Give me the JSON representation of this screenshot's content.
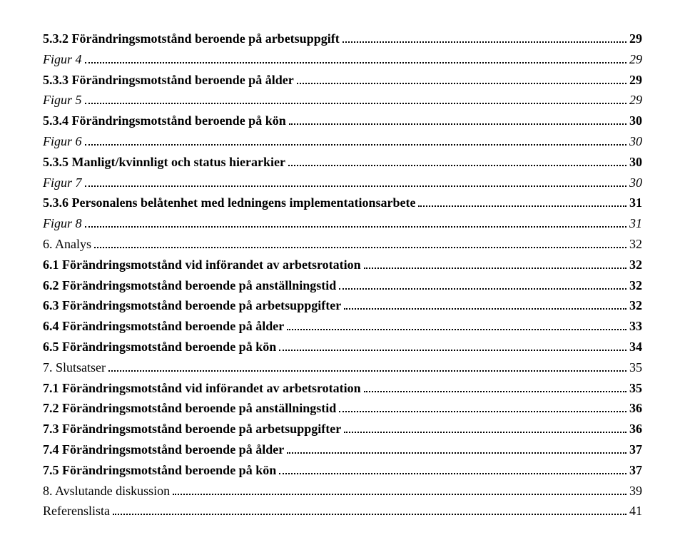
{
  "entries": [
    {
      "label": "5.3.2 Förändringsmotstånd beroende på arbetsuppgift",
      "page": "29",
      "bold": true,
      "italic": false
    },
    {
      "label": "Figur 4",
      "page": "29",
      "bold": false,
      "italic": true
    },
    {
      "label": "5.3.3 Förändringsmotstånd beroende på ålder",
      "page": "29",
      "bold": true,
      "italic": false
    },
    {
      "label": "Figur 5",
      "page": "29",
      "bold": false,
      "italic": true
    },
    {
      "label": "5.3.4 Förändringsmotstånd beroende på kön",
      "page": "30",
      "bold": true,
      "italic": false
    },
    {
      "label": "Figur 6",
      "page": "30",
      "bold": false,
      "italic": true
    },
    {
      "label": "5.3.5 Manligt/kvinnligt och status hierarkier",
      "page": "30",
      "bold": true,
      "italic": false
    },
    {
      "label": "Figur 7",
      "page": "30",
      "bold": false,
      "italic": true
    },
    {
      "label": "5.3.6 Personalens belåtenhet med ledningens implementationsarbete",
      "page": "31",
      "bold": true,
      "italic": false
    },
    {
      "label": "Figur 8",
      "page": "31",
      "bold": false,
      "italic": true
    },
    {
      "label": "6. Analys",
      "page": "32",
      "bold": false,
      "italic": false
    },
    {
      "label": "6.1 Förändringsmotstånd vid införandet av arbetsrotation",
      "page": "32",
      "bold": true,
      "italic": false
    },
    {
      "label": "6.2 Förändringsmotstånd beroende på anställningstid",
      "page": "32",
      "bold": true,
      "italic": false
    },
    {
      "label": "6.3 Förändringsmotstånd beroende på arbetsuppgifter",
      "page": "32",
      "bold": true,
      "italic": false
    },
    {
      "label": "6.4 Förändringsmotstånd beroende på ålder",
      "page": "33",
      "bold": true,
      "italic": false
    },
    {
      "label": "6.5 Förändringsmotstånd beroende på kön",
      "page": "34",
      "bold": true,
      "italic": false
    },
    {
      "label": "7. Slutsatser",
      "page": "35",
      "bold": false,
      "italic": false
    },
    {
      "label": "7.1 Förändringsmotstånd vid införandet av arbetsrotation",
      "page": "35",
      "bold": true,
      "italic": false
    },
    {
      "label": "7.2 Förändringsmotstånd beroende på anställningstid",
      "page": "36",
      "bold": true,
      "italic": false
    },
    {
      "label": "7.3 Förändringsmotstånd beroende på arbetsuppgifter",
      "page": "36",
      "bold": true,
      "italic": false
    },
    {
      "label": "7.4 Förändringsmotstånd beroende på ålder",
      "page": "37",
      "bold": true,
      "italic": false
    },
    {
      "label": "7.5 Förändringsmotstånd beroende på kön",
      "page": "37",
      "bold": true,
      "italic": false
    },
    {
      "label": "8. Avslutande diskussion",
      "page": "39",
      "bold": false,
      "italic": false
    },
    {
      "label": "Referenslista",
      "page": "41",
      "bold": false,
      "italic": false
    }
  ]
}
